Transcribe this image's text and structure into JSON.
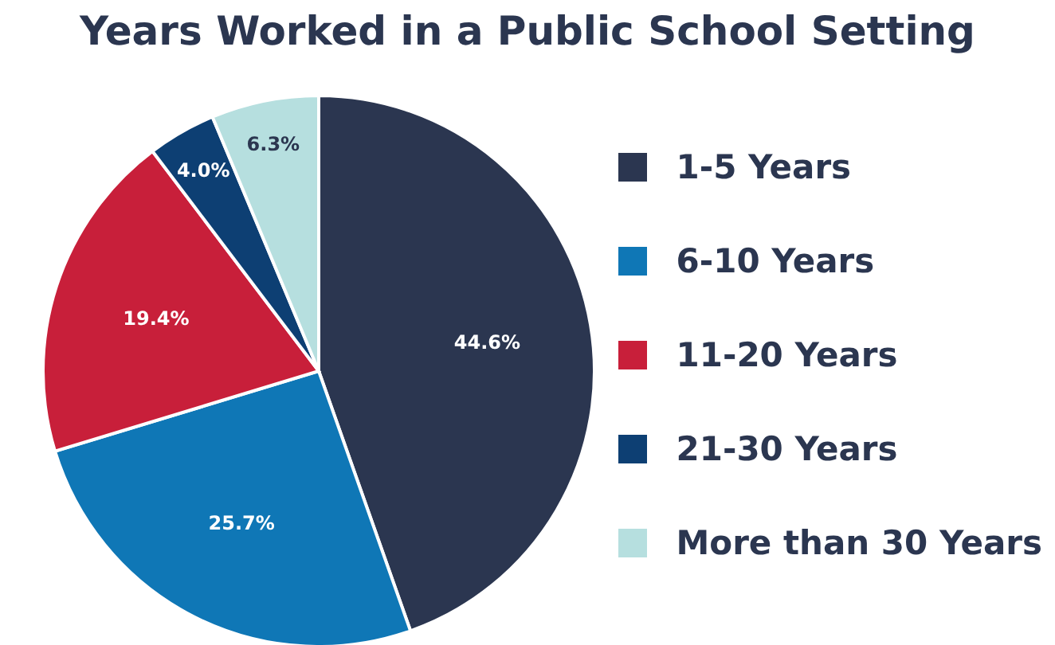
{
  "chart_data": {
    "type": "pie",
    "title": "Years Worked in a Public School Setting",
    "categories": [
      "1-5 Years",
      "6-10 Years",
      "11-20 Years",
      "21-30 Years",
      "More than 30 Years"
    ],
    "values": [
      44.6,
      25.7,
      19.4,
      4.0,
      6.3
    ],
    "colors": [
      "#2b3650",
      "#0f77b6",
      "#c81f3a",
      "#0d3f73",
      "#b6dfdf"
    ],
    "value_labels": [
      "44.6%",
      "25.7%",
      "19.4%",
      "4.0%",
      "6.3%"
    ],
    "legend": "right"
  }
}
